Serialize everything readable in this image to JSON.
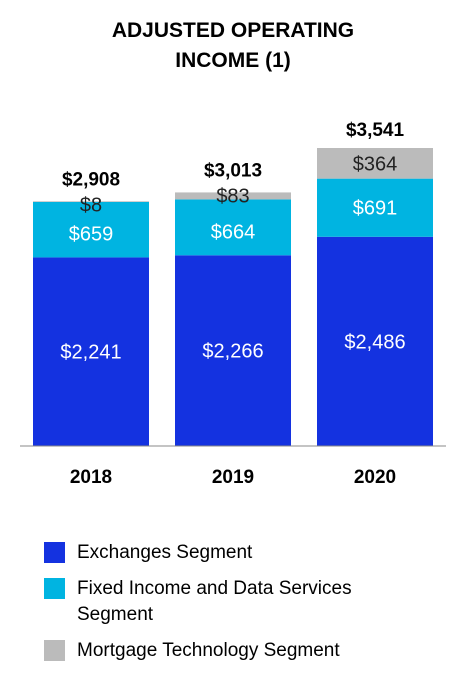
{
  "title_lines": [
    "ADJUSTED OPERATING",
    "INCOME (1)"
  ],
  "colors": {
    "exchanges": "#1432E0",
    "fixed_income": "#00B4E1",
    "mortgage": "#BBBBBB",
    "axis": "#888888"
  },
  "chart_data": {
    "type": "bar",
    "stacked": true,
    "title": "ADJUSTED OPERATING INCOME (1)",
    "categories": [
      "2018",
      "2019",
      "2020"
    ],
    "series": [
      {
        "name": "Exchanges Segment",
        "values": [
          2241,
          2266,
          2486
        ],
        "labels": [
          "$2,241",
          "$2,266",
          "$2,486"
        ],
        "color_key": "exchanges"
      },
      {
        "name": "Fixed Income and Data Services Segment",
        "values": [
          659,
          664,
          691
        ],
        "labels": [
          "$659",
          "$664",
          "$691"
        ],
        "color_key": "fixed_income"
      },
      {
        "name": "Mortgage Technology Segment",
        "values": [
          8,
          83,
          364
        ],
        "labels": [
          "$8",
          "$83",
          "$364"
        ],
        "color_key": "mortgage"
      }
    ],
    "totals": [
      2908,
      3013,
      3541
    ],
    "total_labels": [
      "$2,908",
      "$3,013",
      "$3,541"
    ],
    "ylim": [
      0,
      3541
    ],
    "grid": false
  },
  "legend": {
    "items": [
      {
        "label_lines": [
          "Exchanges Segment"
        ],
        "color_key": "exchanges"
      },
      {
        "label_lines": [
          "Fixed Income and Data Services",
          "Segment"
        ],
        "color_key": "fixed_income"
      },
      {
        "label_lines": [
          "Mortgage Technology Segment"
        ],
        "color_key": "mortgage"
      }
    ]
  }
}
